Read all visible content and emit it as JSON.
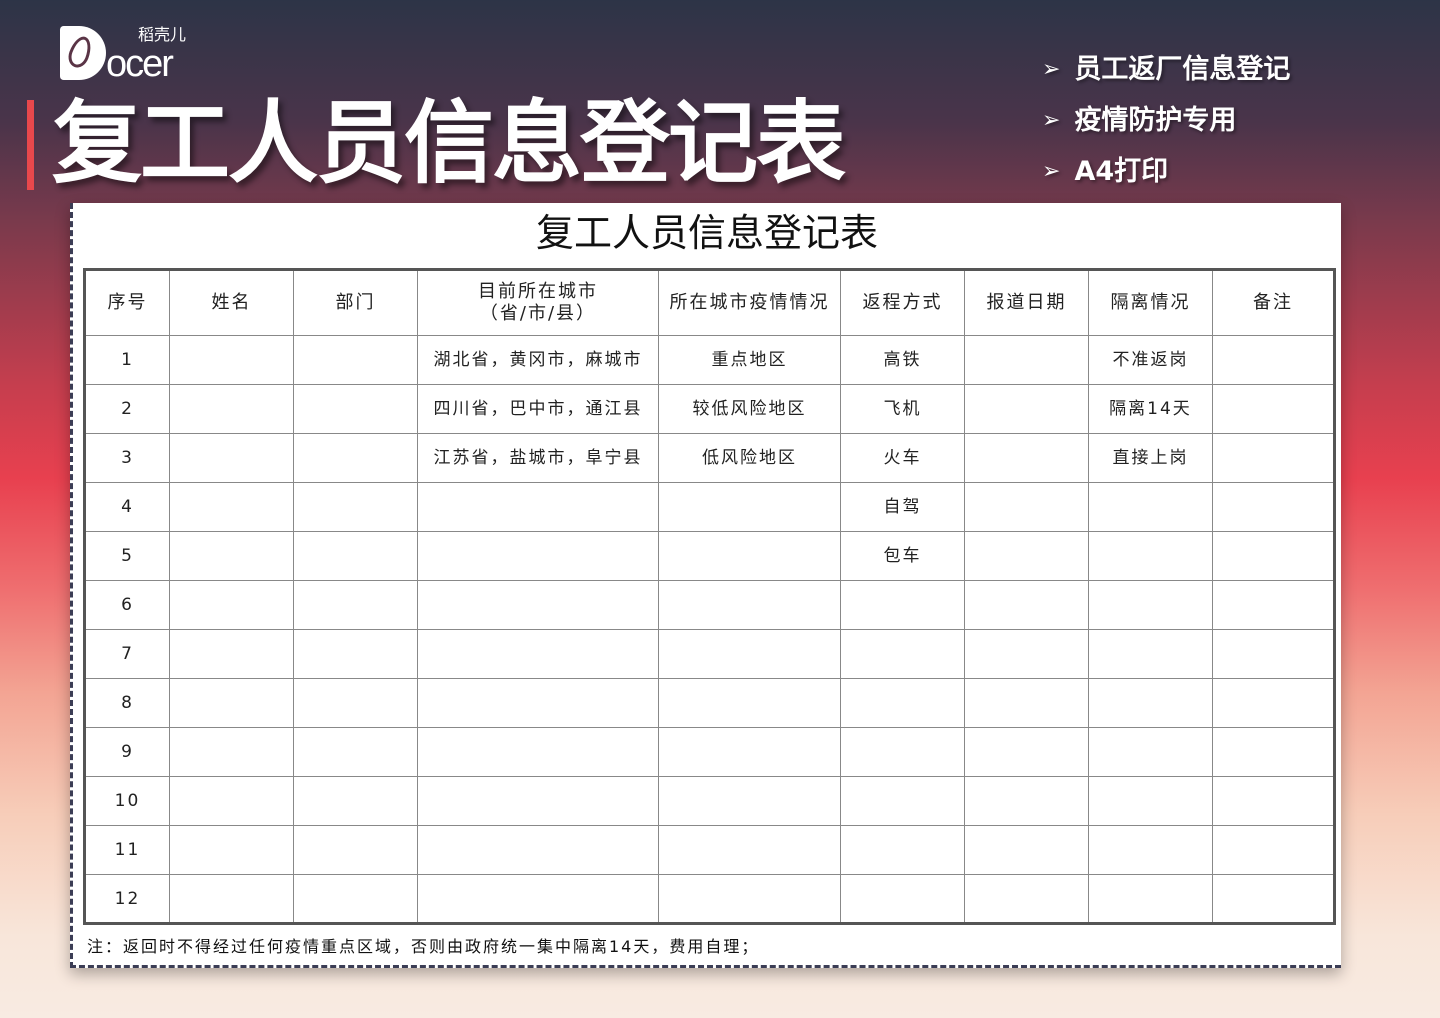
{
  "logo": {
    "brand": "Docer",
    "cn": "稻壳儿"
  },
  "big_title": "复工人员信息登记表",
  "features": [
    "员工返厂信息登记",
    "疫情防护专用",
    "A4打印"
  ],
  "card": {
    "title": "复工人员信息登记表",
    "headers": [
      "序号",
      "姓名",
      "部门",
      "目前所在城市\n（省/市/县）",
      "所在城市疫情情况",
      "返程方式",
      "报道日期",
      "隔离情况",
      "备注"
    ],
    "rows": [
      [
        "1",
        "",
        "",
        "湖北省，黄冈市，麻城市",
        "重点地区",
        "高铁",
        "",
        "不准返岗",
        ""
      ],
      [
        "2",
        "",
        "",
        "四川省，巴中市，通江县",
        "较低风险地区",
        "飞机",
        "",
        "隔离14天",
        ""
      ],
      [
        "3",
        "",
        "",
        "江苏省，盐城市，阜宁县",
        "低风险地区",
        "火车",
        "",
        "直接上岗",
        ""
      ],
      [
        "4",
        "",
        "",
        "",
        "",
        "自驾",
        "",
        "",
        ""
      ],
      [
        "5",
        "",
        "",
        "",
        "",
        "包车",
        "",
        "",
        ""
      ],
      [
        "6",
        "",
        "",
        "",
        "",
        "",
        "",
        "",
        ""
      ],
      [
        "7",
        "",
        "",
        "",
        "",
        "",
        "",
        "",
        ""
      ],
      [
        "8",
        "",
        "",
        "",
        "",
        "",
        "",
        "",
        ""
      ],
      [
        "9",
        "",
        "",
        "",
        "",
        "",
        "",
        "",
        ""
      ],
      [
        "10",
        "",
        "",
        "",
        "",
        "",
        "",
        "",
        ""
      ],
      [
        "11",
        "",
        "",
        "",
        "",
        "",
        "",
        "",
        ""
      ],
      [
        "12",
        "",
        "",
        "",
        "",
        "",
        "",
        "",
        ""
      ]
    ],
    "note": "注：返回时不得经过任何疫情重点区域，否则由政府统一集中隔离14天，费用自理；"
  }
}
